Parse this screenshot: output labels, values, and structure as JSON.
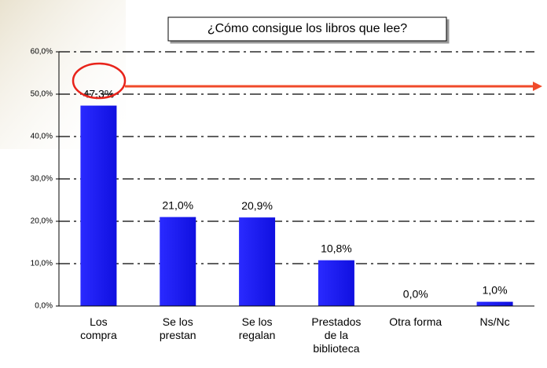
{
  "chart_data": {
    "type": "bar",
    "title": "¿Cómo consigue los libros que lee?",
    "categories": [
      "Los\ncompra",
      "Se los\nprestan",
      "Se los\nregalan",
      "Prestados\nde la\nbiblioteca",
      "Otra forma",
      "Ns/Nc"
    ],
    "values": [
      47.3,
      21.0,
      20.9,
      10.8,
      0.0,
      1.0
    ],
    "value_labels": [
      "47,3%",
      "21,0%",
      "20,9%",
      "10,8%",
      "0,0%",
      "1,0%"
    ],
    "color": "#1f1fff",
    "ylim": [
      0,
      60
    ],
    "yticks": [
      {
        "value": 0,
        "label": "0,0%"
      },
      {
        "value": 10,
        "label": "10,0%"
      },
      {
        "value": 20,
        "label": "20,0%"
      },
      {
        "value": 30,
        "label": "30,0%"
      },
      {
        "value": 40,
        "label": "40,0%"
      },
      {
        "value": 50,
        "label": "50,0%"
      },
      {
        "value": 60,
        "label": "60,0%"
      }
    ],
    "grid": true
  }
}
